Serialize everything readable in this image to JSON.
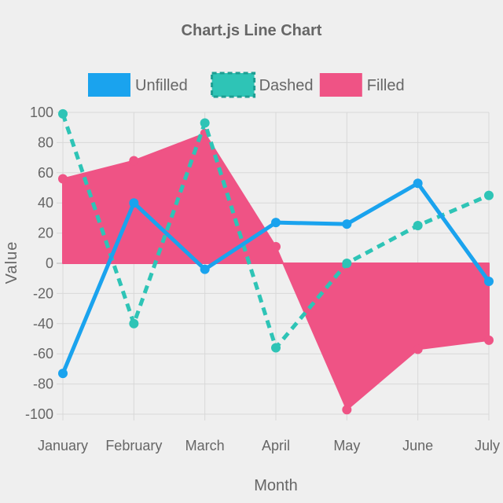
{
  "chart_data": {
    "type": "line",
    "title": "Chart.js Line Chart",
    "xlabel": "Month",
    "ylabel": "Value",
    "categories": [
      "January",
      "February",
      "March",
      "April",
      "May",
      "June",
      "July"
    ],
    "ylim": [
      -100,
      100
    ],
    "yticks": [
      100,
      80,
      60,
      40,
      20,
      0,
      -20,
      -40,
      -60,
      -80,
      -100
    ],
    "grid": true,
    "legend_position": "top",
    "series": [
      {
        "name": "Unfilled",
        "style": "solid",
        "fill": false,
        "color": "#1aa3ee",
        "values": [
          -73,
          40,
          -4,
          27,
          26,
          53,
          -12
        ]
      },
      {
        "name": "Dashed",
        "style": "dashed",
        "fill": false,
        "color": "#2ec4b6",
        "values": [
          99,
          -40,
          93,
          -56,
          0,
          25,
          45
        ]
      },
      {
        "name": "Filled",
        "style": "solid",
        "fill": true,
        "color": "#ef5385",
        "values": [
          56,
          68,
          86,
          11,
          -97,
          -57,
          -51
        ]
      }
    ]
  }
}
